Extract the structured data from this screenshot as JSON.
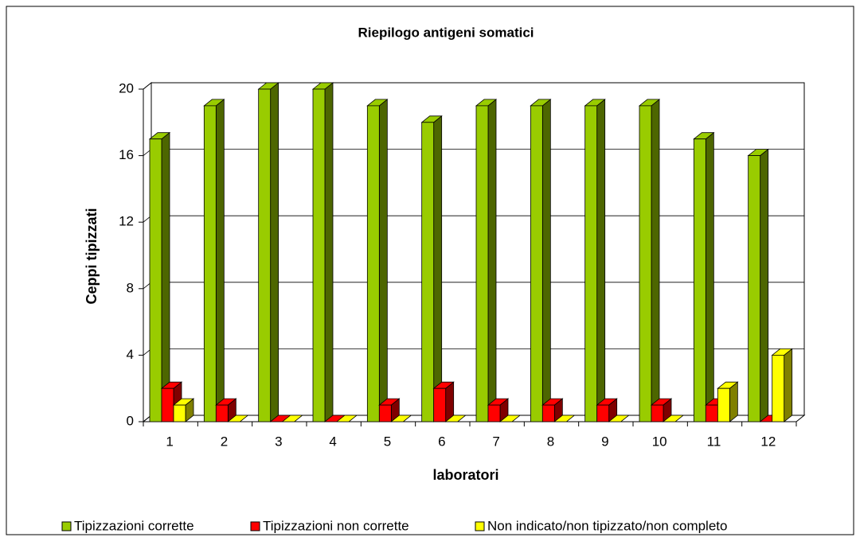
{
  "chart_data": {
    "type": "bar3d",
    "title": "Riepilogo antigeni somatici",
    "x_label": "laboratori",
    "y_label": "Ceppi tipizzati",
    "categories": [
      "1",
      "2",
      "3",
      "4",
      "5",
      "6",
      "7",
      "8",
      "9",
      "10",
      "11",
      "12"
    ],
    "series": [
      {
        "name": "Tipizzazioni corrette",
        "color": "#99cc00",
        "values": [
          17,
          19,
          20,
          20,
          19,
          18,
          19,
          19,
          19,
          19,
          17,
          16
        ]
      },
      {
        "name": "Tipizzazioni non corrette",
        "color": "#ff0000",
        "values": [
          2,
          1,
          0,
          0,
          1,
          2,
          1,
          1,
          1,
          1,
          1,
          0
        ]
      },
      {
        "name": "Non indicato/non tipizzato/non completo",
        "color": "#ffff00",
        "values": [
          1,
          0,
          0,
          0,
          0,
          0,
          0,
          0,
          0,
          0,
          2,
          4
        ]
      }
    ],
    "ylim": [
      0,
      20
    ],
    "yticks": [
      0,
      4,
      8,
      12,
      16,
      20
    ],
    "grid": true,
    "legend": "bottom"
  }
}
